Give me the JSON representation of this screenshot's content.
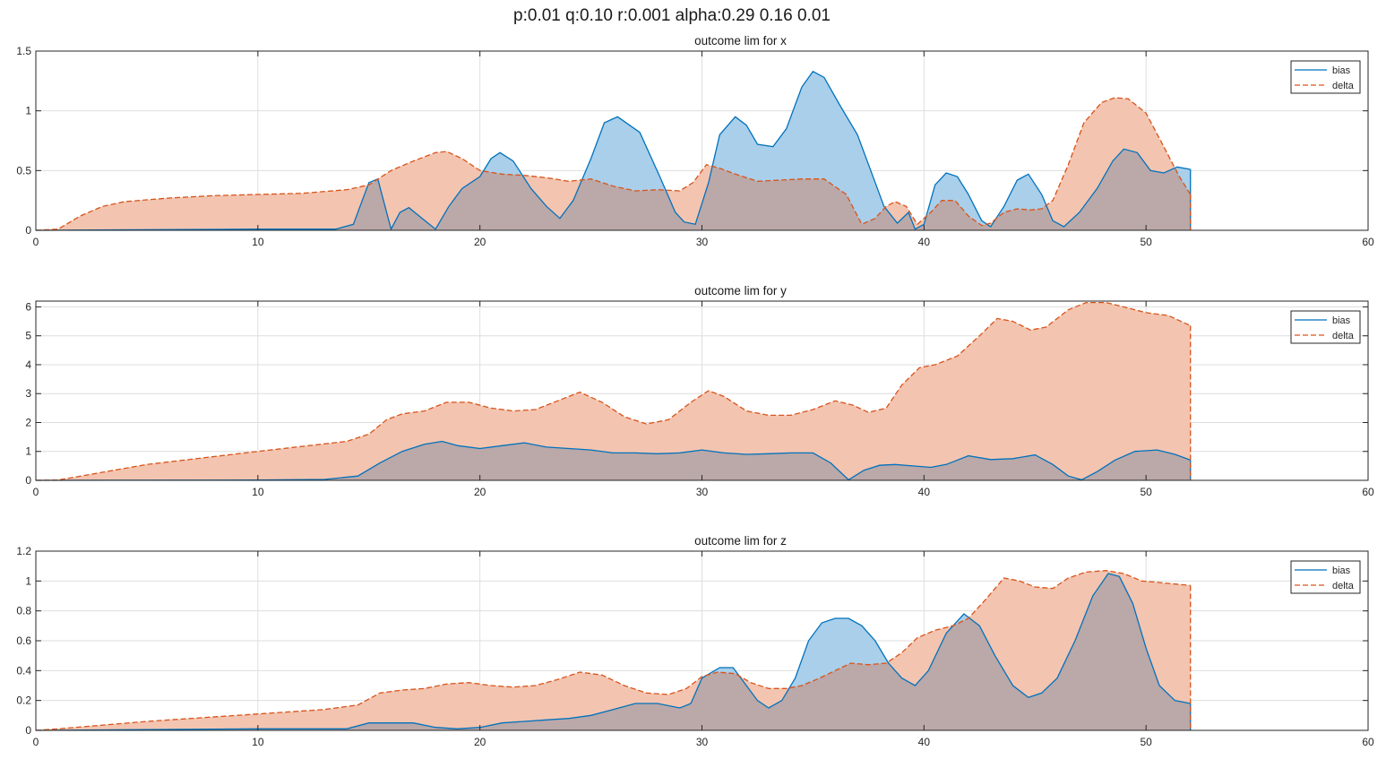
{
  "figure": {
    "suptitle": "p:0.01 q:0.10 r:0.001 alpha:0.29 0.16 0.01",
    "colors": {
      "bias": "#0072BD",
      "delta": "#D95319",
      "bias_fill": "#a9cfea",
      "delta_fill": "#f3c4b0",
      "overlap_fill": "#bba8a8"
    }
  },
  "chart_data": [
    {
      "type": "area",
      "title": "outcome lim for x",
      "xlim": [
        0,
        60
      ],
      "ylim": [
        0,
        1.5
      ],
      "xticks": [
        "0",
        "10",
        "20",
        "30",
        "40",
        "50",
        "60"
      ],
      "yticks": [
        "0",
        "0.5",
        "1",
        "1.5"
      ],
      "grid": true,
      "legend": {
        "position": "top-right",
        "entries": [
          "bias",
          "delta"
        ]
      },
      "series": [
        {
          "name": "bias",
          "style": "solid",
          "x": [
            0,
            10,
            13.5,
            14.3,
            15,
            15.4,
            16,
            16.4,
            16.8,
            17.4,
            18,
            18.6,
            19.2,
            20,
            20.5,
            20.9,
            21.5,
            22.3,
            23,
            23.6,
            24.2,
            25,
            25.6,
            26.2,
            27.2,
            28.1,
            28.8,
            29.2,
            29.7,
            30.3,
            30.8,
            31.5,
            32,
            32.5,
            33.2,
            33.8,
            34.5,
            35,
            35.5,
            36.2,
            37,
            37.6,
            38.2,
            38.8,
            39.3,
            39.6,
            40,
            40.5,
            41,
            41.5,
            42,
            42.6,
            43,
            43.6,
            44.2,
            44.7,
            45.3,
            45.8,
            46.3,
            47,
            47.8,
            48.5,
            49,
            49.6,
            50.2,
            50.8,
            51.4,
            52
          ],
          "y": [
            0,
            0.01,
            0.01,
            0.05,
            0.4,
            0.43,
            0.01,
            0.15,
            0.19,
            0.1,
            0.01,
            0.2,
            0.35,
            0.45,
            0.6,
            0.65,
            0.58,
            0.35,
            0.2,
            0.1,
            0.25,
            0.6,
            0.9,
            0.95,
            0.82,
            0.45,
            0.15,
            0.07,
            0.05,
            0.4,
            0.8,
            0.95,
            0.88,
            0.72,
            0.7,
            0.85,
            1.2,
            1.33,
            1.28,
            1.05,
            0.8,
            0.5,
            0.2,
            0.06,
            0.15,
            0.01,
            0.05,
            0.38,
            0.48,
            0.45,
            0.3,
            0.08,
            0.03,
            0.2,
            0.42,
            0.47,
            0.3,
            0.08,
            0.03,
            0.15,
            0.35,
            0.58,
            0.68,
            0.65,
            0.5,
            0.48,
            0.53,
            0.51
          ]
        },
        {
          "name": "delta",
          "style": "dashed",
          "x": [
            0,
            1,
            2,
            3,
            4,
            6,
            8,
            10,
            12,
            14,
            15,
            16,
            17,
            18,
            18.5,
            19.2,
            20,
            21,
            22,
            23,
            24,
            25,
            26,
            27,
            28,
            29,
            29.6,
            30.2,
            30.8,
            31.5,
            32.5,
            33.5,
            34.5,
            35.5,
            36.5,
            37.2,
            37.8,
            38.3,
            38.7,
            39.2,
            39.7,
            40.3,
            40.8,
            41.4,
            42,
            42.6,
            43,
            43.6,
            44.2,
            44.8,
            45.3,
            45.8,
            46.5,
            47.2,
            48,
            48.6,
            49.2,
            50,
            50.8,
            51.5,
            52
          ],
          "y": [
            0,
            0.01,
            0.12,
            0.2,
            0.24,
            0.27,
            0.29,
            0.3,
            0.31,
            0.34,
            0.38,
            0.5,
            0.58,
            0.65,
            0.66,
            0.6,
            0.5,
            0.47,
            0.46,
            0.44,
            0.41,
            0.43,
            0.37,
            0.33,
            0.34,
            0.33,
            0.4,
            0.55,
            0.52,
            0.47,
            0.41,
            0.42,
            0.43,
            0.43,
            0.3,
            0.05,
            0.1,
            0.2,
            0.24,
            0.2,
            0.05,
            0.15,
            0.25,
            0.25,
            0.12,
            0.04,
            0.06,
            0.15,
            0.18,
            0.17,
            0.18,
            0.25,
            0.55,
            0.9,
            1.07,
            1.11,
            1.1,
            0.98,
            0.7,
            0.45,
            0.3
          ]
        }
      ]
    },
    {
      "type": "area",
      "title": "outcome lim for y",
      "xlim": [
        0,
        60
      ],
      "ylim": [
        0,
        6.2
      ],
      "xticks": [
        "0",
        "10",
        "20",
        "30",
        "40",
        "50",
        "60"
      ],
      "yticks": [
        "0",
        "1",
        "2",
        "3",
        "4",
        "5",
        "6"
      ],
      "grid": true,
      "legend": {
        "position": "top-right",
        "entries": [
          "bias",
          "delta"
        ]
      },
      "series": [
        {
          "name": "bias",
          "style": "solid",
          "x": [
            0,
            10,
            13,
            14.5,
            15.5,
            16.5,
            17.5,
            18.3,
            19,
            20,
            21,
            22,
            23,
            24,
            25,
            26,
            27,
            28,
            29,
            30,
            31,
            32,
            33,
            34,
            35,
            35.8,
            36.6,
            37.3,
            38,
            38.7,
            39.5,
            40.3,
            41,
            42,
            43,
            44,
            45,
            45.8,
            46.5,
            47.1,
            47.8,
            48.6,
            49.5,
            50.5,
            51.3,
            52
          ],
          "y": [
            0,
            0.01,
            0.03,
            0.15,
            0.6,
            1.0,
            1.25,
            1.35,
            1.2,
            1.1,
            1.2,
            1.3,
            1.15,
            1.1,
            1.05,
            0.95,
            0.95,
            0.92,
            0.95,
            1.05,
            0.95,
            0.9,
            0.92,
            0.95,
            0.95,
            0.6,
            0.02,
            0.35,
            0.52,
            0.55,
            0.5,
            0.45,
            0.55,
            0.85,
            0.72,
            0.75,
            0.88,
            0.55,
            0.15,
            0.02,
            0.3,
            0.7,
            1.0,
            1.05,
            0.9,
            0.7
          ]
        },
        {
          "name": "delta",
          "style": "dashed",
          "x": [
            0,
            1,
            5,
            10,
            14,
            15,
            15.8,
            16.5,
            17.5,
            18.5,
            19.5,
            20.5,
            21.5,
            22.5,
            23.5,
            24.5,
            25.5,
            26.5,
            27.5,
            28.5,
            29.5,
            30.3,
            31,
            32,
            33,
            34,
            35,
            36,
            36.8,
            37.5,
            38.3,
            39,
            39.8,
            40.5,
            41.5,
            42.5,
            43.3,
            44,
            44.8,
            45.5,
            46.5,
            47.3,
            48.2,
            49,
            50,
            51,
            52
          ],
          "y": [
            0,
            0.01,
            0.55,
            1.0,
            1.35,
            1.6,
            2.1,
            2.3,
            2.4,
            2.7,
            2.7,
            2.5,
            2.4,
            2.45,
            2.75,
            3.05,
            2.7,
            2.2,
            1.95,
            2.1,
            2.7,
            3.1,
            2.9,
            2.4,
            2.25,
            2.25,
            2.45,
            2.75,
            2.6,
            2.35,
            2.5,
            3.3,
            3.9,
            4.0,
            4.3,
            5.0,
            5.6,
            5.5,
            5.2,
            5.3,
            5.9,
            6.15,
            6.15,
            6.0,
            5.8,
            5.7,
            5.35
          ]
        }
      ]
    },
    {
      "type": "area",
      "title": "outcome lim for z",
      "xlim": [
        0,
        60
      ],
      "ylim": [
        0,
        1.2
      ],
      "xticks": [
        "0",
        "10",
        "20",
        "30",
        "40",
        "50",
        "60"
      ],
      "yticks": [
        "0",
        "0.2",
        "0.4",
        "0.6",
        "0.8",
        "1",
        "1.2"
      ],
      "grid": true,
      "legend": {
        "position": "top-right",
        "entries": [
          "bias",
          "delta"
        ]
      },
      "series": [
        {
          "name": "bias",
          "style": "solid",
          "x": [
            0,
            10,
            14,
            15,
            16,
            17,
            18,
            19,
            20,
            21,
            22,
            23,
            24,
            25,
            26,
            27,
            28,
            29,
            29.5,
            30,
            30.8,
            31.4,
            32,
            32.5,
            33,
            33.6,
            34.2,
            34.8,
            35.4,
            36,
            36.6,
            37.2,
            37.8,
            38.4,
            39,
            39.6,
            40.2,
            41,
            41.8,
            42.5,
            43.2,
            44,
            44.7,
            45.3,
            46,
            46.8,
            47.6,
            48.3,
            48.8,
            49.4,
            50,
            50.6,
            51.3,
            52
          ],
          "y": [
            0,
            0.01,
            0.01,
            0.05,
            0.05,
            0.05,
            0.02,
            0.01,
            0.02,
            0.05,
            0.06,
            0.07,
            0.08,
            0.1,
            0.14,
            0.18,
            0.18,
            0.15,
            0.18,
            0.35,
            0.42,
            0.42,
            0.3,
            0.2,
            0.15,
            0.2,
            0.35,
            0.6,
            0.72,
            0.75,
            0.75,
            0.7,
            0.6,
            0.45,
            0.35,
            0.3,
            0.4,
            0.65,
            0.78,
            0.7,
            0.5,
            0.3,
            0.22,
            0.25,
            0.35,
            0.6,
            0.9,
            1.05,
            1.03,
            0.85,
            0.55,
            0.3,
            0.2,
            0.18
          ]
        },
        {
          "name": "delta",
          "style": "dashed",
          "x": [
            0,
            1,
            5,
            10,
            13,
            14.5,
            15.5,
            16.5,
            17.5,
            18.5,
            19.5,
            20.5,
            21.5,
            22.5,
            23.5,
            24.5,
            25.5,
            26.5,
            27.5,
            28.5,
            29.3,
            30,
            30.7,
            31.5,
            32.2,
            33,
            33.8,
            34.5,
            35.3,
            36,
            36.7,
            37.5,
            38.3,
            39,
            39.7,
            40.5,
            41.3,
            42,
            42.8,
            43.6,
            44.3,
            45,
            45.8,
            46.5,
            47.3,
            48.2,
            49,
            49.8,
            50.6,
            51.3,
            52
          ],
          "y": [
            0,
            0.01,
            0.06,
            0.11,
            0.14,
            0.17,
            0.25,
            0.27,
            0.28,
            0.31,
            0.32,
            0.3,
            0.29,
            0.3,
            0.34,
            0.39,
            0.37,
            0.3,
            0.25,
            0.24,
            0.28,
            0.36,
            0.39,
            0.38,
            0.32,
            0.28,
            0.28,
            0.3,
            0.35,
            0.4,
            0.45,
            0.44,
            0.45,
            0.52,
            0.62,
            0.67,
            0.7,
            0.75,
            0.88,
            1.02,
            1.0,
            0.96,
            0.95,
            1.02,
            1.06,
            1.07,
            1.05,
            1.0,
            0.99,
            0.98,
            0.97
          ]
        }
      ]
    }
  ]
}
